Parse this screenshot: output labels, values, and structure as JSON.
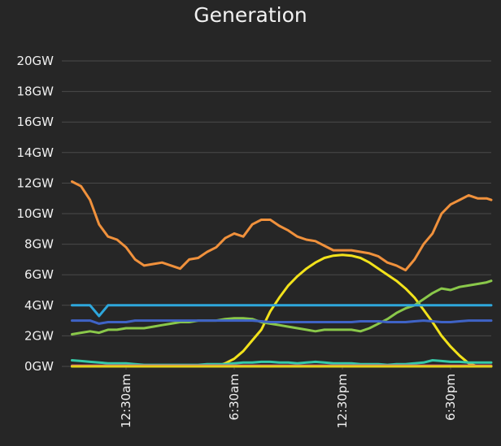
{
  "chart_data": {
    "type": "line",
    "title": "Generation",
    "xlabel": "",
    "ylabel": "",
    "ylim": [
      0,
      20
    ],
    "yticks": [
      "0GW",
      "2GW",
      "4GW",
      "6GW",
      "8GW",
      "10GW",
      "12GW",
      "14GW",
      "16GW",
      "18GW",
      "20GW"
    ],
    "xticks": [
      "12:30am",
      "6:30am",
      "12:30pm",
      "6:30pm"
    ],
    "xtick_hours": [
      0.5,
      6.5,
      12.5,
      18.5
    ],
    "grid": true,
    "legend": "none",
    "x_hours": [
      -2.5,
      -2.0,
      -1.5,
      -1.0,
      -0.5,
      0.0,
      0.5,
      1.0,
      1.5,
      2.0,
      2.5,
      3.0,
      3.5,
      4.0,
      4.5,
      5.0,
      5.5,
      6.0,
      6.5,
      7.0,
      7.5,
      8.0,
      8.5,
      9.0,
      9.5,
      10.0,
      10.5,
      11.0,
      11.5,
      12.0,
      12.5,
      13.0,
      13.5,
      14.0,
      14.5,
      15.0,
      15.5,
      16.0,
      16.5,
      17.0,
      17.5,
      18.0,
      18.5,
      19.0,
      19.5,
      20.0,
      20.5,
      21.0
    ],
    "series": [
      {
        "color": "#f0913c",
        "values": [
          12.1,
          11.8,
          10.9,
          9.3,
          8.5,
          8.3,
          7.8,
          7.0,
          6.6,
          6.7,
          6.8,
          6.6,
          6.4,
          7.0,
          7.1,
          7.5,
          7.8,
          8.4,
          8.7,
          8.5,
          9.3,
          9.6,
          9.6,
          9.2,
          8.9,
          8.5,
          8.3,
          8.2,
          7.9,
          7.6,
          7.6,
          7.6,
          7.5,
          7.4,
          7.2,
          6.8,
          6.6,
          6.3,
          7.0,
          8.0,
          8.7,
          10.0,
          10.6,
          10.9,
          11.2,
          11.0,
          11.0,
          10.9
        ]
      },
      {
        "color": "#f2e21b",
        "values": [
          0,
          0,
          0,
          0,
          0,
          0,
          0,
          0,
          0,
          0,
          0,
          0,
          0,
          0,
          0,
          0,
          0,
          0.2,
          0.5,
          1.0,
          1.7,
          2.4,
          3.6,
          4.5,
          5.3,
          5.9,
          6.4,
          6.8,
          7.1,
          7.25,
          7.3,
          7.25,
          7.1,
          6.8,
          6.4,
          6.0,
          5.6,
          5.1,
          4.5,
          3.7,
          2.9,
          2.0,
          1.3,
          0.7,
          0.2,
          0,
          0,
          0
        ]
      },
      {
        "color": "#8ac84a",
        "values": [
          2.1,
          2.2,
          2.3,
          2.2,
          2.4,
          2.4,
          2.5,
          2.5,
          2.5,
          2.6,
          2.7,
          2.8,
          2.9,
          2.9,
          3.0,
          3.0,
          3.0,
          3.1,
          3.15,
          3.15,
          3.1,
          2.9,
          2.8,
          2.7,
          2.6,
          2.5,
          2.4,
          2.3,
          2.4,
          2.4,
          2.4,
          2.4,
          2.3,
          2.5,
          2.8,
          3.1,
          3.5,
          3.8,
          4.0,
          4.4,
          4.8,
          5.1,
          5.0,
          5.2,
          5.3,
          5.4,
          5.5,
          5.6
        ]
      },
      {
        "color": "#2ea7dc",
        "values": [
          4.0,
          4.0,
          4.0,
          3.3,
          4.0,
          4.0,
          4.0,
          4.0,
          4.0,
          4.0,
          4.0,
          4.0,
          4.0,
          4.0,
          4.0,
          4.0,
          4.0,
          4.0,
          4.0,
          4.0,
          4.0,
          4.0,
          4.0,
          4.0,
          4.0,
          4.0,
          4.0,
          4.0,
          4.0,
          4.0,
          4.0,
          4.0,
          4.0,
          4.0,
          4.0,
          4.0,
          4.0,
          4.0,
          4.0,
          4.0,
          4.0,
          4.0,
          4.0,
          4.0,
          4.0,
          4.0,
          4.0,
          4.0
        ]
      },
      {
        "color": "#3f63c6",
        "values": [
          3.0,
          3.0,
          3.0,
          2.8,
          2.9,
          2.9,
          2.9,
          3.0,
          3.0,
          3.0,
          3.0,
          3.0,
          3.0,
          3.0,
          3.0,
          3.0,
          3.0,
          3.0,
          3.0,
          3.0,
          3.0,
          2.95,
          2.9,
          2.9,
          2.9,
          2.9,
          2.9,
          2.9,
          2.9,
          2.9,
          2.9,
          2.9,
          2.95,
          2.95,
          2.95,
          2.9,
          2.9,
          2.9,
          2.95,
          3.0,
          2.95,
          2.9,
          2.9,
          2.95,
          3.0,
          3.0,
          3.0,
          3.0
        ]
      },
      {
        "color": "#36c9a8",
        "values": [
          0.4,
          0.35,
          0.3,
          0.25,
          0.2,
          0.2,
          0.2,
          0.15,
          0.1,
          0.1,
          0.1,
          0.1,
          0.1,
          0.1,
          0.1,
          0.15,
          0.15,
          0.15,
          0.2,
          0.25,
          0.25,
          0.3,
          0.3,
          0.25,
          0.25,
          0.2,
          0.25,
          0.3,
          0.25,
          0.2,
          0.2,
          0.2,
          0.15,
          0.15,
          0.15,
          0.1,
          0.15,
          0.15,
          0.2,
          0.25,
          0.4,
          0.35,
          0.3,
          0.3,
          0.25,
          0.25,
          0.25,
          0.25
        ]
      },
      {
        "color": "#d6527a",
        "values": [
          0.05,
          0.05,
          0.05,
          0.05,
          0.05,
          0.05,
          0.05,
          0.05,
          0.05,
          0.05,
          0.05,
          0.05,
          0.05,
          0.05,
          0.05,
          0.05,
          0.05,
          0.05,
          0.05,
          0.05,
          0.05,
          0.05,
          0.05,
          0.05,
          0.05,
          0.05,
          0.05,
          0.05,
          0.05,
          0.05,
          0.05,
          0.05,
          0.05,
          0.05,
          0.05,
          0.05,
          0.05,
          0.05,
          0.05,
          0.05,
          0.05,
          0.05,
          0.05,
          0.05,
          0.05,
          0.05,
          0.05,
          0.05
        ]
      },
      {
        "color": "#e3d21a",
        "values": [
          0.0,
          0.0,
          0.0,
          0.0,
          0.0,
          0.0,
          0.0,
          0.0,
          0.0,
          0.0,
          0.0,
          0.0,
          0.0,
          0.0,
          0.0,
          0.0,
          0.0,
          0.0,
          0.0,
          0.0,
          0.0,
          0.0,
          0.0,
          0.0,
          0.0,
          0.0,
          0.0,
          0.0,
          0.0,
          0.0,
          0.0,
          0.0,
          0.0,
          0.0,
          0.0,
          0.0,
          0.0,
          0.0,
          0.0,
          0.0,
          0.0,
          0.0,
          0.0,
          0.0,
          0.0,
          0.0,
          0.0,
          0.0
        ]
      }
    ]
  }
}
